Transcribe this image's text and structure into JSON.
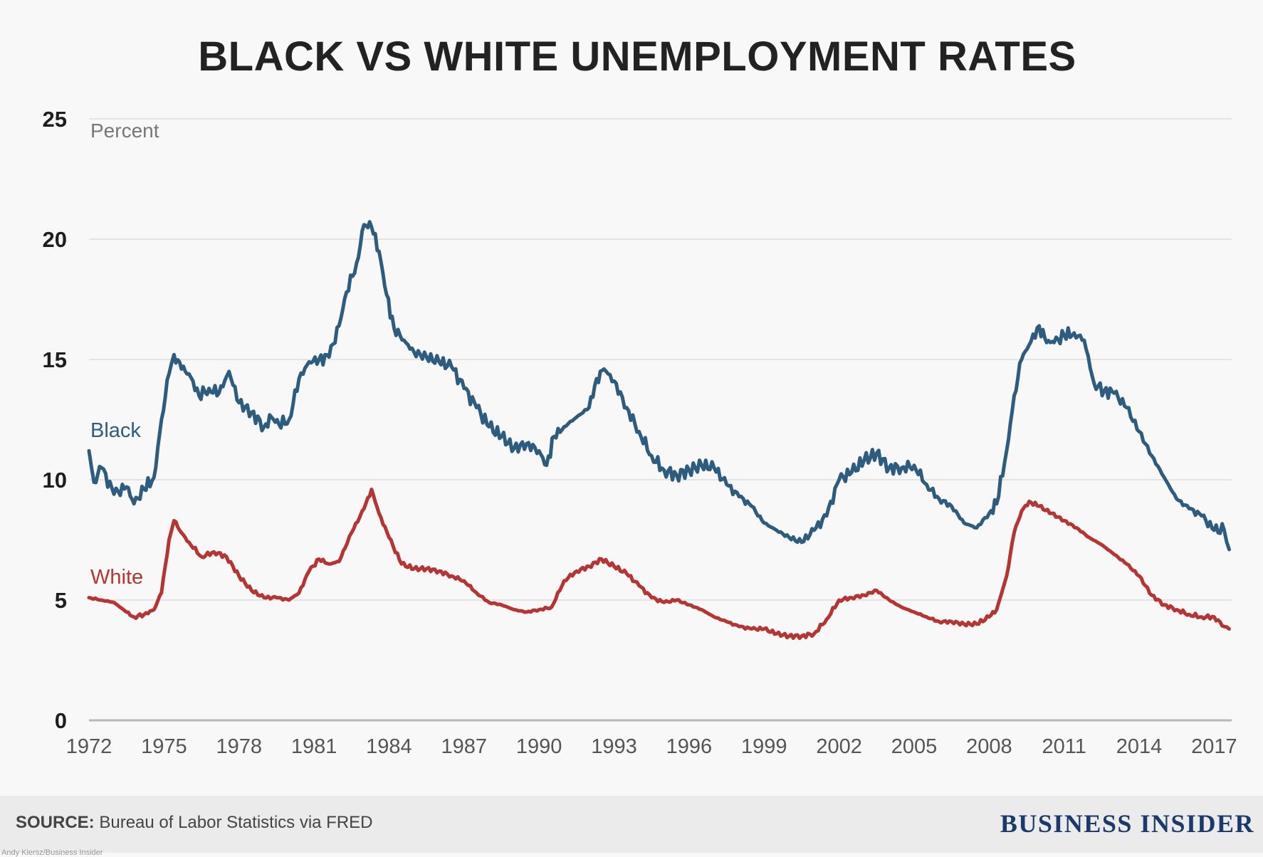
{
  "chart_data": {
    "type": "line",
    "title": "BLACK VS WHITE UNEMPLOYMENT RATES",
    "ylabel": "Percent",
    "xlabel": "",
    "ylim": [
      0,
      25
    ],
    "xlim": [
      1972,
      2017.7
    ],
    "yticks": [
      0,
      5,
      10,
      15,
      20,
      25
    ],
    "xticks": [
      "1972",
      "1975",
      "1978",
      "1981",
      "1984",
      "1987",
      "1990",
      "1993",
      "1996",
      "1999",
      "2002",
      "2005",
      "2008",
      "2011",
      "2014",
      "2017"
    ],
    "grid": true,
    "series": [
      {
        "name": "Black",
        "color": "#2e5c7e",
        "x": [
          1972.0,
          1972.2,
          1972.5,
          1973.0,
          1973.5,
          1973.8,
          1974.2,
          1974.6,
          1974.9,
          1975.2,
          1975.4,
          1975.7,
          1976.0,
          1976.4,
          1976.8,
          1977.2,
          1977.6,
          1978.0,
          1978.5,
          1979.0,
          1979.3,
          1979.6,
          1980.0,
          1980.4,
          1980.8,
          1981.2,
          1981.6,
          1982.0,
          1982.3,
          1982.7,
          1983.0,
          1983.3,
          1983.6,
          1983.9,
          1984.2,
          1984.6,
          1985.0,
          1985.5,
          1986.0,
          1986.5,
          1987.0,
          1987.5,
          1988.0,
          1988.5,
          1989.0,
          1989.5,
          1990.0,
          1990.3,
          1990.6,
          1991.0,
          1991.5,
          1992.0,
          1992.3,
          1992.6,
          1993.0,
          1993.5,
          1994.0,
          1994.5,
          1995.0,
          1995.5,
          1996.0,
          1996.5,
          1997.0,
          1997.5,
          1998.0,
          1998.5,
          1999.0,
          1999.5,
          2000.0,
          2000.5,
          2001.0,
          2001.5,
          2002.0,
          2002.5,
          2003.0,
          2003.5,
          2004.0,
          2004.5,
          2005.0,
          2005.5,
          2006.0,
          2006.5,
          2007.0,
          2007.5,
          2008.0,
          2008.3,
          2008.7,
          2009.0,
          2009.3,
          2009.6,
          2010.0,
          2010.3,
          2010.6,
          2011.0,
          2011.4,
          2011.8,
          2012.2,
          2012.6,
          2013.0,
          2013.5,
          2014.0,
          2014.5,
          2015.0,
          2015.5,
          2016.0,
          2016.5,
          2017.0,
          2017.4,
          2017.6
        ],
        "values": [
          11.2,
          9.9,
          10.5,
          9.4,
          9.7,
          9.0,
          9.6,
          10.1,
          12.5,
          14.4,
          15.2,
          14.6,
          14.4,
          13.5,
          13.8,
          13.6,
          14.5,
          13.2,
          12.8,
          12.2,
          12.6,
          12.3,
          12.5,
          14.2,
          14.9,
          15.0,
          15.1,
          16.4,
          17.8,
          19.0,
          20.6,
          20.5,
          19.5,
          17.7,
          16.3,
          15.8,
          15.3,
          15.1,
          14.9,
          14.7,
          13.8,
          13.0,
          12.2,
          11.8,
          11.3,
          11.5,
          11.2,
          10.6,
          11.8,
          12.2,
          12.6,
          13.0,
          14.2,
          14.6,
          14.1,
          13.0,
          12.0,
          11.0,
          10.4,
          10.2,
          10.4,
          10.6,
          10.5,
          9.8,
          9.3,
          8.9,
          8.2,
          7.9,
          7.6,
          7.4,
          7.9,
          8.5,
          10.0,
          10.3,
          10.8,
          11.1,
          10.5,
          10.5,
          10.6,
          9.8,
          9.2,
          8.9,
          8.2,
          8.0,
          8.6,
          9.0,
          11.2,
          13.5,
          15.0,
          15.6,
          16.4,
          15.7,
          15.7,
          16.0,
          16.1,
          15.8,
          14.0,
          13.7,
          13.6,
          13.0,
          12.0,
          11.0,
          10.1,
          9.2,
          8.8,
          8.5,
          7.9,
          7.9,
          7.1
        ]
      },
      {
        "name": "White",
        "color": "#b53434",
        "x": [
          1972.0,
          1972.5,
          1973.0,
          1973.5,
          1973.8,
          1974.2,
          1974.6,
          1974.9,
          1975.2,
          1975.4,
          1975.7,
          1976.0,
          1976.5,
          1977.0,
          1977.5,
          1978.0,
          1978.5,
          1979.0,
          1979.5,
          1980.0,
          1980.4,
          1980.8,
          1981.2,
          1981.6,
          1982.0,
          1982.5,
          1983.0,
          1983.3,
          1983.6,
          1984.0,
          1984.5,
          1985.0,
          1985.5,
          1986.0,
          1986.5,
          1987.0,
          1987.5,
          1988.0,
          1988.5,
          1989.0,
          1989.5,
          1990.0,
          1990.5,
          1991.0,
          1991.5,
          1992.0,
          1992.5,
          1993.0,
          1993.5,
          1994.0,
          1994.5,
          1995.0,
          1995.5,
          1996.0,
          1996.5,
          1997.0,
          1997.5,
          1998.0,
          1998.5,
          1999.0,
          1999.5,
          2000.0,
          2000.5,
          2001.0,
          2001.5,
          2002.0,
          2002.5,
          2003.0,
          2003.5,
          2004.0,
          2004.5,
          2005.0,
          2005.5,
          2006.0,
          2006.5,
          2007.0,
          2007.5,
          2008.0,
          2008.3,
          2008.7,
          2009.0,
          2009.3,
          2009.6,
          2010.0,
          2010.5,
          2011.0,
          2011.5,
          2012.0,
          2012.5,
          2013.0,
          2013.5,
          2014.0,
          2014.5,
          2015.0,
          2015.5,
          2016.0,
          2016.5,
          2017.0,
          2017.4,
          2017.6
        ],
        "values": [
          5.1,
          5.0,
          4.9,
          4.5,
          4.3,
          4.4,
          4.6,
          5.3,
          7.5,
          8.3,
          7.8,
          7.4,
          6.8,
          7.0,
          6.8,
          6.0,
          5.4,
          5.1,
          5.1,
          5.0,
          5.3,
          6.2,
          6.7,
          6.5,
          6.6,
          7.8,
          8.8,
          9.6,
          8.6,
          7.6,
          6.5,
          6.3,
          6.3,
          6.2,
          6.0,
          5.8,
          5.3,
          4.9,
          4.8,
          4.6,
          4.5,
          4.6,
          4.7,
          5.8,
          6.2,
          6.4,
          6.7,
          6.4,
          6.1,
          5.6,
          5.1,
          4.9,
          5.0,
          4.8,
          4.6,
          4.3,
          4.1,
          3.9,
          3.8,
          3.8,
          3.6,
          3.5,
          3.5,
          3.6,
          4.2,
          5.0,
          5.1,
          5.2,
          5.4,
          5.0,
          4.7,
          4.5,
          4.3,
          4.1,
          4.1,
          4.0,
          4.0,
          4.3,
          4.6,
          6.0,
          7.8,
          8.7,
          9.1,
          8.9,
          8.6,
          8.3,
          8.0,
          7.6,
          7.3,
          6.9,
          6.5,
          6.0,
          5.2,
          4.8,
          4.6,
          4.4,
          4.3,
          4.3,
          3.9,
          3.8
        ]
      }
    ]
  },
  "footer": {
    "source_label": "SOURCE:",
    "source_text": " Bureau of Labor Statistics via FRED",
    "brand": "BUSINESS INSIDER",
    "credit": "Andy Kiersz/Business Insider"
  }
}
